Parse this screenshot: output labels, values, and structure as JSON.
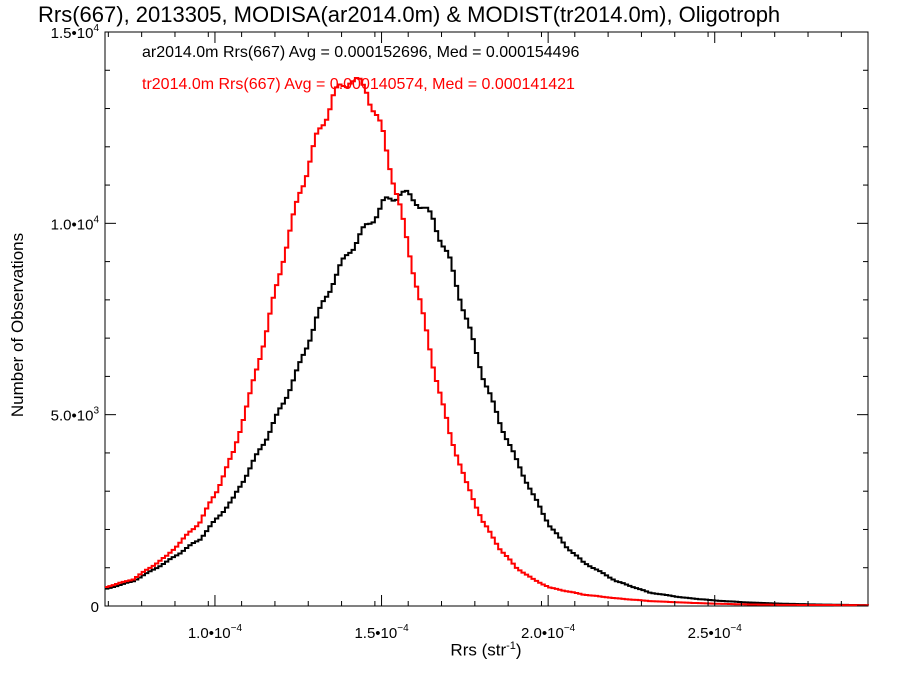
{
  "chart_data": {
    "type": "line",
    "title": "Rrs(667), 2013305, MODISA(ar2014.0m) & MODIST(tr2014.0m), Oligotroph",
    "xlabel": "Rrs (str",
    "xlabel_unit_sup": "-1",
    "xlabel_close": ")",
    "ylabel": "Number of Observations",
    "xlim": [
      6.7e-05,
      0.000296
    ],
    "ylim": [
      0,
      15000
    ],
    "x_ticks": [
      {
        "value": 0.0001,
        "mant": "1.0•10",
        "exp": "−4"
      },
      {
        "value": 0.00015,
        "mant": "1.5•10",
        "exp": "−4"
      },
      {
        "value": 0.0002,
        "mant": "2.0•10",
        "exp": "−4"
      },
      {
        "value": 0.00025,
        "mant": "2.5•10",
        "exp": "−4"
      }
    ],
    "y_ticks": [
      {
        "value": 0,
        "mant": "0",
        "exp": ""
      },
      {
        "value": 5000,
        "mant": "5.0•10",
        "exp": "3"
      },
      {
        "value": 10000,
        "mant": "1.0•10",
        "exp": "4"
      },
      {
        "value": 15000,
        "mant": "1.5•10",
        "exp": "4"
      }
    ],
    "grid": false,
    "legend_position": "top-left",
    "series": [
      {
        "legend": "ar2014.0m Rrs(667) Avg = 0.000152696, Med = 0.000154496",
        "color": "#000000",
        "x": [
          6.7e-05,
          7.5e-05,
          8.5e-05,
          9.5e-05,
          0.000105,
          0.000115,
          0.00012,
          0.000125,
          0.00013,
          0.000135,
          0.00014,
          0.000145,
          0.00015,
          0.000155,
          0.00016,
          0.000165,
          0.00017,
          0.000175,
          0.00018,
          0.000185,
          0.00019,
          0.000195,
          0.0002,
          0.000205,
          0.00021,
          0.000215,
          0.00022,
          0.00023,
          0.00024,
          0.00025,
          0.00026,
          0.00027,
          0.00028,
          0.000296
        ],
        "y": [
          450,
          650,
          1150,
          1750,
          2800,
          4400,
          5300,
          6300,
          7500,
          8500,
          9300,
          9900,
          10500,
          10800,
          10600,
          10100,
          9000,
          7500,
          6000,
          4800,
          3800,
          2900,
          2100,
          1550,
          1150,
          900,
          650,
          350,
          220,
          140,
          90,
          60,
          40,
          20
        ]
      },
      {
        "legend": "tr2014.0m Rrs(667) Avg = 0.000140574, Med = 0.000141421",
        "color": "#ff0000",
        "x": [
          6.7e-05,
          7.5e-05,
          8.5e-05,
          9.5e-05,
          0.0001,
          0.000105,
          0.00011,
          0.000115,
          0.00012,
          0.000125,
          0.00013,
          0.000135,
          0.00014,
          0.000145,
          0.00015,
          0.000155,
          0.00016,
          0.000165,
          0.00017,
          0.000175,
          0.00018,
          0.000185,
          0.00019,
          0.000195,
          0.0002,
          0.00021,
          0.00022,
          0.00023,
          0.00024,
          0.00025,
          0.00026,
          0.00027,
          0.000296
        ],
        "y": [
          500,
          700,
          1300,
          2200,
          3000,
          4000,
          5500,
          7200,
          9100,
          10800,
          12200,
          13300,
          13800,
          13500,
          12300,
          10400,
          8400,
          6300,
          4500,
          3200,
          2200,
          1500,
          1000,
          700,
          480,
          300,
          200,
          130,
          90,
          60,
          40,
          30,
          20
        ]
      }
    ]
  }
}
